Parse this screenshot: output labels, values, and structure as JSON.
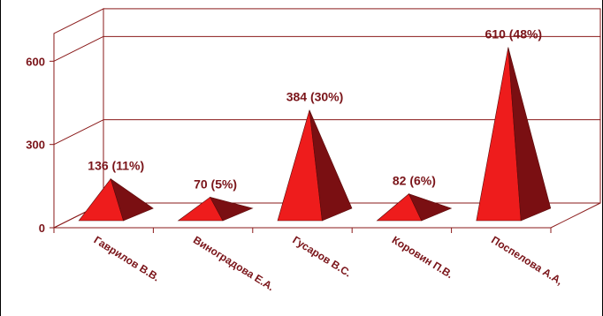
{
  "chart_data": {
    "type": "bar",
    "style": "3d-pyramid",
    "title": "",
    "xlabel": "",
    "ylabel": "",
    "categories": [
      "Гаврилов В.В.",
      "Виноградова Е.А.",
      "Гусаров В.С.",
      "Коровин П.В.",
      "Поспелова А.А,"
    ],
    "values": [
      136,
      70,
      384,
      82,
      610
    ],
    "data_labels": [
      "136 (11%)",
      "70 (5%)",
      "384 (30%)",
      "82 (6%)",
      "610 (48%)"
    ],
    "ylim": [
      0,
      700
    ],
    "yticks": [
      0,
      300,
      600
    ],
    "ytick_labels": [
      "0",
      "300",
      "600"
    ],
    "grid": true,
    "legend": "none"
  },
  "colors": {
    "pyramid_front": "#ee1c1c",
    "pyramid_side": "#7a0f12",
    "label_text": "#7a1419",
    "axis_lines": "#8a1a1a",
    "axis_tick_color": "#000000"
  }
}
